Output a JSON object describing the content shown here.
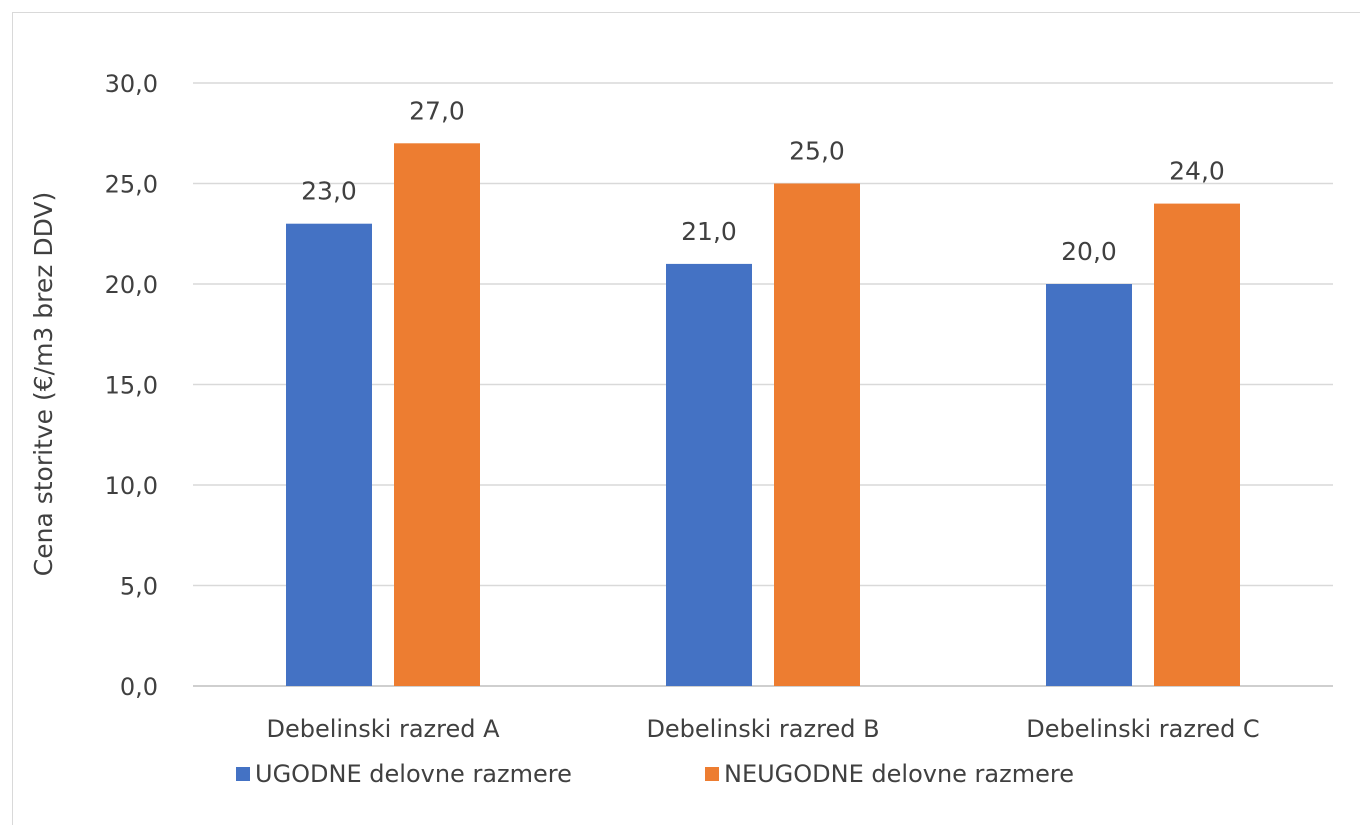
{
  "chart_data": {
    "type": "bar",
    "title": "",
    "xlabel": "",
    "ylabel": "Cena storitve (€/m3 brez DDV)",
    "ylim": [
      0,
      30
    ],
    "yticks": [
      "0,0",
      "5,0",
      "10,0",
      "15,0",
      "20,0",
      "25,0",
      "30,0"
    ],
    "ytick_values": [
      0,
      5,
      10,
      15,
      20,
      25,
      30
    ],
    "categories": [
      "Debelinski razred A",
      "Debelinski razred B",
      "Debelinski razred C"
    ],
    "series": [
      {
        "name": "UGODNE delovne razmere",
        "color": "#4472C4",
        "values": [
          23.0,
          21.0,
          20.0
        ],
        "labels": [
          "23,0",
          "21,0",
          "20,0"
        ]
      },
      {
        "name": "NEUGODNE delovne razmere",
        "color": "#ED7D31",
        "values": [
          27.0,
          25.0,
          24.0
        ],
        "labels": [
          "27,0",
          "25,0",
          "24,0"
        ]
      }
    ],
    "grid": true,
    "legend_position": "bottom"
  }
}
